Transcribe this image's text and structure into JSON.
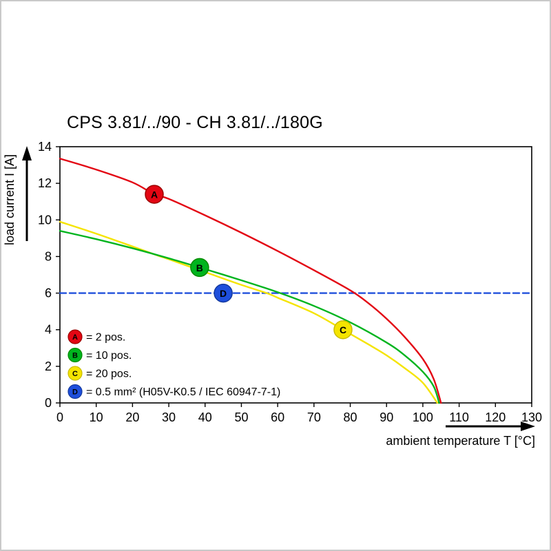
{
  "chart_data": {
    "type": "line",
    "title": "CPS 3.81/../90 - CH 3.81/../180G",
    "xlabel": "ambient temperature T [°C]",
    "ylabel": "load current I [A]",
    "xlim": [
      0,
      130
    ],
    "ylim": [
      0,
      14
    ],
    "xticks": [
      0,
      10,
      20,
      30,
      40,
      50,
      60,
      70,
      80,
      90,
      100,
      110,
      120,
      130
    ],
    "yticks": [
      0,
      2,
      4,
      6,
      8,
      10,
      12,
      14
    ],
    "grid": false,
    "legend_position": "inside-bottom-left",
    "series": [
      {
        "name": "A",
        "legend": "= 2 pos.",
        "color": "#e30613",
        "edge": "#9b0000",
        "style": "solid",
        "points": [
          [
            0,
            13.35
          ],
          [
            10,
            12.75
          ],
          [
            20,
            12.05
          ],
          [
            26,
            11.4
          ],
          [
            30,
            11.15
          ],
          [
            40,
            10.25
          ],
          [
            50,
            9.3
          ],
          [
            60,
            8.3
          ],
          [
            70,
            7.25
          ],
          [
            80,
            6.15
          ],
          [
            85,
            5.45
          ],
          [
            90,
            4.6
          ],
          [
            95,
            3.6
          ],
          [
            100,
            2.4
          ],
          [
            103,
            1.3
          ],
          [
            105,
            0
          ]
        ],
        "marker": [
          26,
          11.4
        ]
      },
      {
        "name": "B",
        "legend": "= 10 pos.",
        "color": "#00b41e",
        "edge": "#008a00",
        "style": "solid",
        "points": [
          [
            0,
            9.4
          ],
          [
            10,
            8.95
          ],
          [
            20,
            8.45
          ],
          [
            30,
            7.9
          ],
          [
            38.5,
            7.4
          ],
          [
            50,
            6.7
          ],
          [
            60,
            6.05
          ],
          [
            70,
            5.3
          ],
          [
            80,
            4.4
          ],
          [
            90,
            3.3
          ],
          [
            95,
            2.6
          ],
          [
            100,
            1.7
          ],
          [
            103,
            0.9
          ],
          [
            104.5,
            0
          ]
        ],
        "marker": [
          38.5,
          7.4
        ]
      },
      {
        "name": "C",
        "legend": "= 20 pos.",
        "color": "#f5e400",
        "edge": "#c9bb00",
        "style": "solid",
        "points": [
          [
            0,
            9.9
          ],
          [
            10,
            9.25
          ],
          [
            20,
            8.55
          ],
          [
            27,
            8.05
          ],
          [
            30,
            7.85
          ],
          [
            40,
            7.15
          ],
          [
            50,
            6.45
          ],
          [
            57,
            6.0
          ],
          [
            60,
            5.75
          ],
          [
            70,
            4.9
          ],
          [
            78,
            4.0
          ],
          [
            85,
            3.2
          ],
          [
            90,
            2.6
          ],
          [
            95,
            1.9
          ],
          [
            100,
            1.1
          ],
          [
            104,
            0
          ]
        ],
        "marker": [
          78,
          4.0
        ]
      },
      {
        "name": "D",
        "legend": "= 0.5 mm² (H05V-K0.5 / IEC 60947-7-1)",
        "color": "#1e4fdc",
        "edge": "#14399d",
        "style": "dashed",
        "points": [
          [
            0,
            6
          ],
          [
            130,
            6
          ]
        ],
        "marker": [
          45,
          6
        ]
      }
    ]
  }
}
